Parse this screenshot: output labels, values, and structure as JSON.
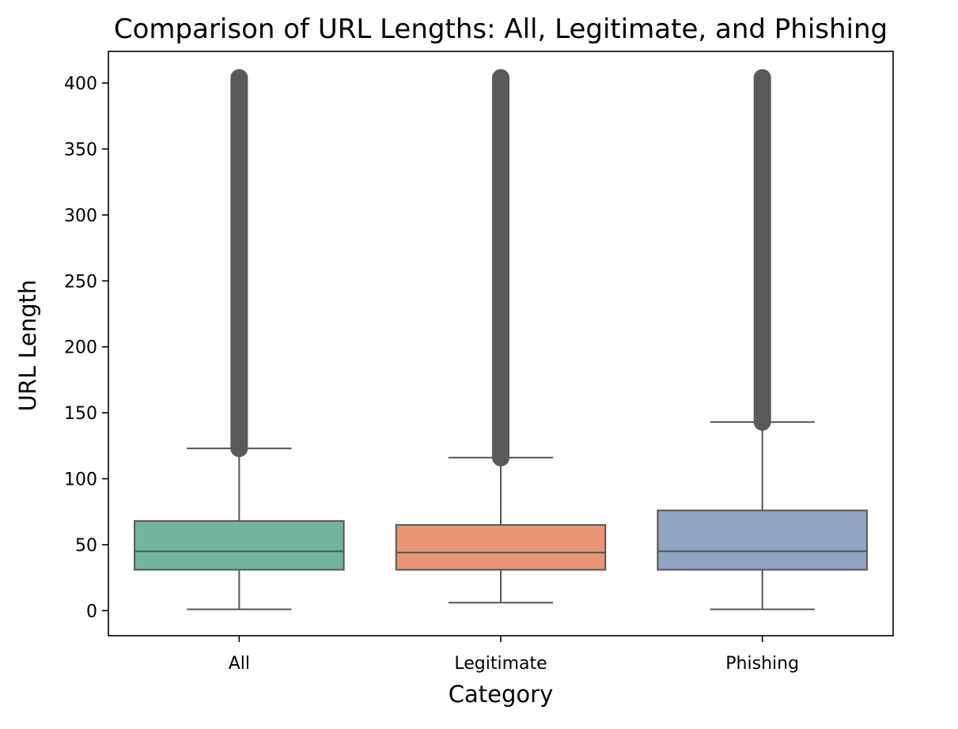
{
  "chart_data": {
    "type": "box",
    "title": "Comparison of URL Lengths: All, Legitimate, and Phishing",
    "xlabel": "Category",
    "ylabel": "URL Length",
    "categories": [
      "All",
      "Legitimate",
      "Phishing"
    ],
    "ylim": [
      -19,
      424
    ],
    "yticks": [
      0,
      50,
      100,
      150,
      200,
      250,
      300,
      350,
      400
    ],
    "grid": false,
    "legend": "none",
    "boxes": [
      {
        "category": "All",
        "whisker_low": 1,
        "q1": 31,
        "median": 45,
        "q3": 68,
        "whisker_high": 123,
        "outliers_from": 123,
        "outliers_to": 404,
        "color": "#73b4a0"
      },
      {
        "category": "Legitimate",
        "whisker_low": 6,
        "q1": 31,
        "median": 44,
        "q3": 65,
        "whisker_high": 116,
        "outliers_from": 116,
        "outliers_to": 404,
        "color": "#e89674"
      },
      {
        "category": "Phishing",
        "whisker_low": 1,
        "q1": 31,
        "median": 45,
        "q3": 76,
        "whisker_high": 143,
        "outliers_from": 143,
        "outliers_to": 404,
        "color": "#93a3c2"
      }
    ],
    "line_color": "#555555",
    "outlier_color": "#595959"
  }
}
